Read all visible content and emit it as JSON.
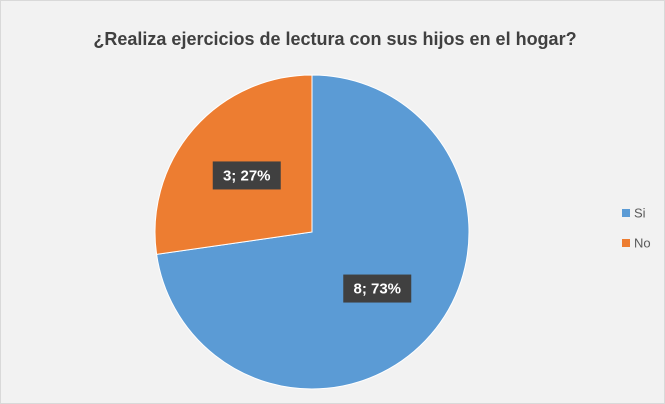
{
  "chart_data": {
    "type": "pie",
    "title": "¿Realiza ejercicios de lectura con sus hijos en el hogar?",
    "categories": [
      "Si",
      "No"
    ],
    "values": [
      8,
      3
    ],
    "value_labels": [
      "8; 73%",
      "3; 27%"
    ],
    "colors": [
      "#5b9bd5",
      "#ed7d31"
    ],
    "legend": "right"
  }
}
